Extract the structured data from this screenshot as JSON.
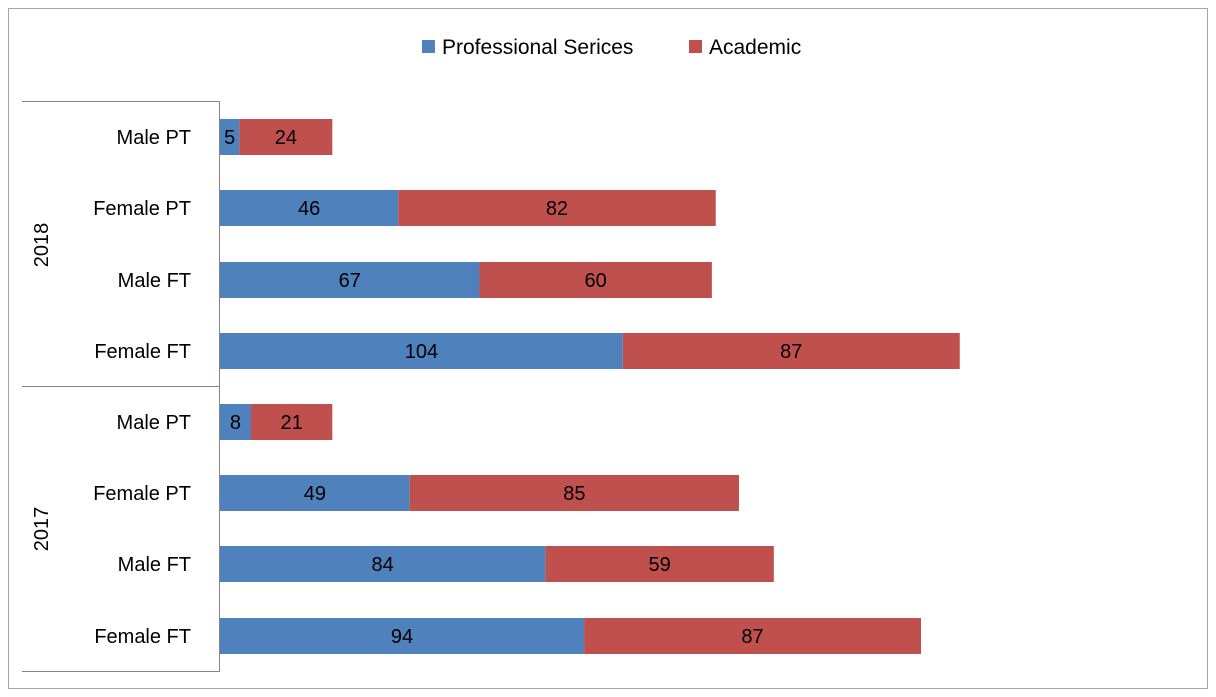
{
  "chart_data": {
    "type": "bar",
    "orientation": "horizontal",
    "stacked": true,
    "legend_position": "top",
    "grid": false,
    "xlim": [
      0,
      191
    ],
    "groups": [
      {
        "label": "2018",
        "categories": [
          "Male PT",
          "Female PT",
          "Male FT",
          "Female FT"
        ]
      },
      {
        "label": "2017",
        "categories": [
          "Male PT",
          "Female PT",
          "Male FT",
          "Female FT"
        ]
      }
    ],
    "series": [
      {
        "name": "Professional Serices",
        "color": "#4f81bd",
        "values": [
          5,
          46,
          67,
          104,
          8,
          49,
          84,
          94
        ]
      },
      {
        "name": "Academic",
        "color": "#c0504d",
        "values": [
          24,
          82,
          60,
          87,
          21,
          85,
          59,
          87
        ]
      }
    ],
    "data_labels": true
  }
}
